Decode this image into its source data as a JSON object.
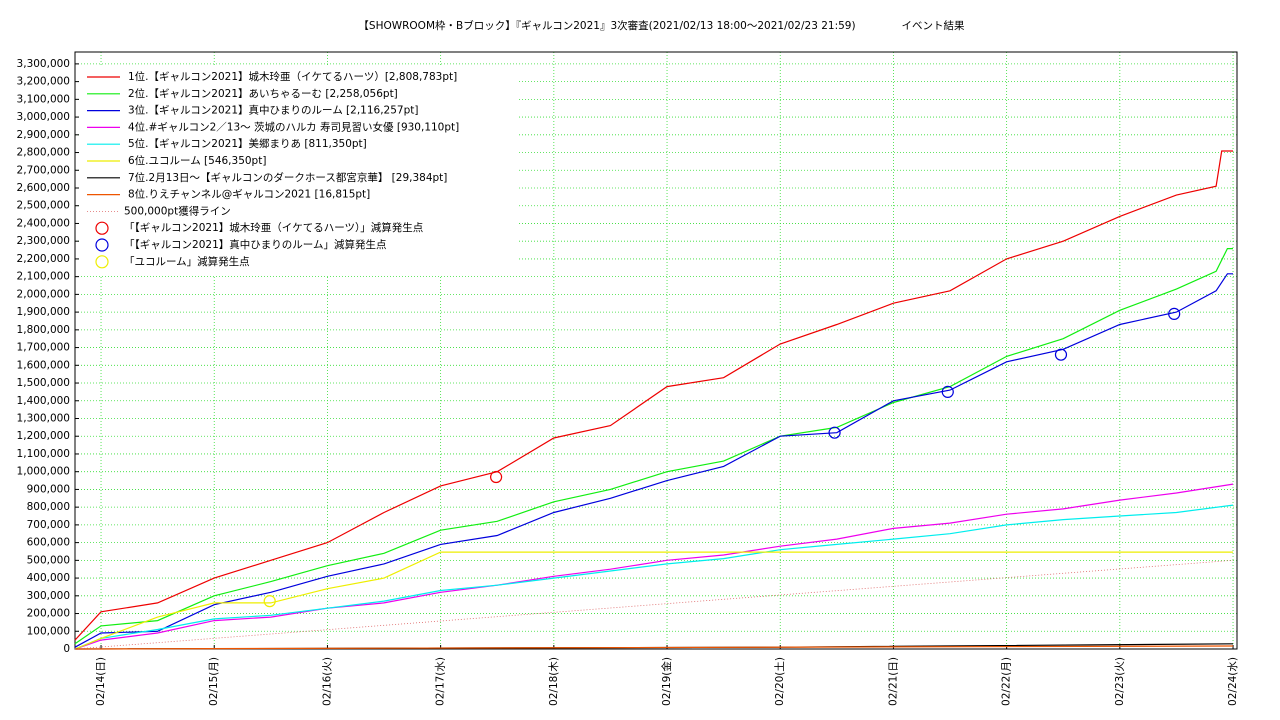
{
  "chart_data": {
    "type": "line",
    "title": "【SHOWROOM枠・Bブロック】『ギャルコン2021』3次審査(2021/02/13 18:00〜2021/02/23 21:59)",
    "subtitle": "イベント結果",
    "xlim": [
      13.77,
      24.035
    ],
    "xticks": [
      {
        "value": 14,
        "label": "02/14(日)"
      },
      {
        "value": 15,
        "label": "02/15(月)"
      },
      {
        "value": 16,
        "label": "02/16(火)"
      },
      {
        "value": 17,
        "label": "02/17(水)"
      },
      {
        "value": 18,
        "label": "02/18(木)"
      },
      {
        "value": 19,
        "label": "02/19(金)"
      },
      {
        "value": 20,
        "label": "02/20(土)"
      },
      {
        "value": 21,
        "label": "02/21(日)"
      },
      {
        "value": 22,
        "label": "02/22(月)"
      },
      {
        "value": 23,
        "label": "02/23(火)"
      },
      {
        "value": 24,
        "label": "02/24(水)"
      }
    ],
    "ylim": [
      0,
      3367000
    ],
    "yticks": [
      0,
      {
        "value": 100000,
        "label": "100,000"
      },
      {
        "value": 200000,
        "label": "200,000"
      },
      {
        "value": 300000,
        "label": "300,000"
      },
      {
        "value": 400000,
        "label": "400,000"
      },
      {
        "value": 500000,
        "label": "500,000"
      },
      {
        "value": 600000,
        "label": "600,000"
      },
      {
        "value": 700000,
        "label": "700,000"
      },
      {
        "value": 800000,
        "label": "800,000"
      },
      {
        "value": 900000,
        "label": "900,000"
      },
      {
        "value": 1000000,
        "label": "1,000,000"
      },
      {
        "value": 1100000,
        "label": "1,100,000"
      },
      {
        "value": 1200000,
        "label": "1,200,000"
      },
      {
        "value": 1300000,
        "label": "1,300,000"
      },
      {
        "value": 1400000,
        "label": "1,400,000"
      },
      {
        "value": 1500000,
        "label": "1,500,000"
      },
      {
        "value": 1600000,
        "label": "1,600,000"
      },
      {
        "value": 1700000,
        "label": "1,700,000"
      },
      {
        "value": 1800000,
        "label": "1,800,000"
      },
      {
        "value": 1900000,
        "label": "1,900,000"
      },
      {
        "value": 2000000,
        "label": "2,000,000"
      },
      {
        "value": 2100000,
        "label": "2,100,000"
      },
      {
        "value": 2200000,
        "label": "2,200,000"
      },
      {
        "value": 2300000,
        "label": "2,300,000"
      },
      {
        "value": 2400000,
        "label": "2,400,000"
      },
      {
        "value": 2500000,
        "label": "2,500,000"
      },
      {
        "value": 2600000,
        "label": "2,600,000"
      },
      {
        "value": 2700000,
        "label": "2,700,000"
      },
      {
        "value": 2800000,
        "label": "2,800,000"
      },
      {
        "value": 2900000,
        "label": "2,900,000"
      },
      {
        "value": 3000000,
        "label": "3,000,000"
      },
      {
        "value": 3100000,
        "label": "3,100,000"
      },
      {
        "value": 3200000,
        "label": "3,200,000"
      },
      {
        "value": 3300000,
        "label": "3,300,000"
      }
    ],
    "grid": true,
    "grid_color": "#33dd33",
    "legend": "upper left",
    "series": [
      {
        "name": "1位.【ギャルコン2021】城木玲亜（イケてるハーツ）[2,808,783pt]",
        "color": "#ee0000",
        "style": "line",
        "x": [
          13.77,
          14.0,
          14.5,
          15.0,
          15.5,
          16.0,
          16.5,
          17.0,
          17.5,
          18.0,
          18.5,
          19.0,
          19.5,
          20.0,
          20.5,
          21.0,
          21.5,
          22.0,
          22.5,
          23.0,
          23.5,
          23.85,
          23.9,
          24.0
        ],
        "values": [
          50000,
          210000,
          260000,
          400000,
          500000,
          600000,
          770000,
          920000,
          1000000,
          1190000,
          1260000,
          1480000,
          1530000,
          1720000,
          1830000,
          1950000,
          2020000,
          2200000,
          2300000,
          2440000,
          2560000,
          2610000,
          2808783,
          2808783
        ]
      },
      {
        "name": "2位.【ギャルコン2021】あいちゃるーむ [2,258,056pt]",
        "color": "#11ee11",
        "style": "line",
        "x": [
          13.77,
          14.0,
          14.5,
          15.0,
          15.5,
          16.0,
          16.5,
          17.0,
          17.5,
          18.0,
          18.5,
          19.0,
          19.5,
          20.0,
          20.5,
          21.0,
          21.5,
          22.0,
          22.5,
          23.0,
          23.5,
          23.85,
          23.95,
          24.0
        ],
        "values": [
          30000,
          130000,
          160000,
          300000,
          380000,
          470000,
          540000,
          670000,
          720000,
          830000,
          900000,
          1000000,
          1060000,
          1200000,
          1250000,
          1390000,
          1480000,
          1650000,
          1750000,
          1910000,
          2030000,
          2130000,
          2258056,
          2258056
        ]
      },
      {
        "name": "3位.【ギャルコン2021】真中ひまりのルーム [2,116,257pt]",
        "color": "#0000dd",
        "style": "line",
        "x": [
          13.77,
          14.0,
          14.5,
          15.0,
          15.5,
          16.0,
          16.5,
          17.0,
          17.5,
          18.0,
          18.5,
          19.0,
          19.5,
          20.0,
          20.5,
          21.0,
          21.5,
          22.0,
          22.5,
          23.0,
          23.5,
          23.85,
          23.95,
          24.0
        ],
        "values": [
          10000,
          90000,
          100000,
          250000,
          320000,
          410000,
          480000,
          590000,
          640000,
          770000,
          850000,
          950000,
          1030000,
          1200000,
          1220000,
          1400000,
          1460000,
          1620000,
          1690000,
          1830000,
          1900000,
          2020000,
          2116257,
          2116257
        ]
      },
      {
        "name": "4位.#ギャルコン2／13〜 茨城のハルカ 寿司見習い女優 [930,110pt]",
        "color": "#ee00ee",
        "style": "line",
        "x": [
          13.77,
          14.0,
          14.5,
          15.0,
          15.5,
          16.0,
          16.5,
          17.0,
          17.5,
          18.0,
          18.5,
          19.0,
          19.5,
          20.0,
          20.5,
          21.0,
          21.5,
          22.0,
          22.5,
          23.0,
          23.5,
          24.0
        ],
        "values": [
          0,
          50000,
          90000,
          160000,
          180000,
          230000,
          260000,
          320000,
          360000,
          410000,
          450000,
          500000,
          530000,
          580000,
          620000,
          680000,
          710000,
          760000,
          790000,
          840000,
          880000,
          930110
        ]
      },
      {
        "name": "5位.【ギャルコン2021】美郷まりあ [811,350pt]",
        "color": "#00eeee",
        "style": "line",
        "x": [
          13.77,
          14.0,
          14.5,
          15.0,
          15.5,
          16.0,
          16.5,
          17.0,
          17.5,
          18.0,
          18.5,
          19.0,
          19.5,
          20.0,
          20.5,
          21.0,
          21.5,
          22.0,
          22.5,
          23.0,
          23.5,
          24.0
        ],
        "values": [
          0,
          60000,
          110000,
          170000,
          190000,
          230000,
          270000,
          330000,
          360000,
          400000,
          440000,
          480000,
          510000,
          560000,
          590000,
          620000,
          650000,
          700000,
          730000,
          750000,
          770000,
          811350
        ]
      },
      {
        "name": "6位.ユコルーム [546,350pt]",
        "color": "#eeee00",
        "style": "line",
        "x": [
          13.77,
          14.0,
          14.5,
          15.0,
          15.5,
          16.0,
          16.5,
          17.0,
          24.0
        ],
        "values": [
          0,
          60000,
          180000,
          260000,
          260000,
          340000,
          400000,
          546350,
          546350
        ]
      },
      {
        "name": "7位.2月13日〜【ギャルコンのダークホース都宮京華】 [29,384pt]",
        "color": "#000000",
        "style": "line",
        "x": [
          13.77,
          20.0,
          24.0
        ],
        "values": [
          0,
          10000,
          29384
        ]
      },
      {
        "name": "8位.りえチャンネル@ギャルコン2021 [16,815pt]",
        "color": "#ee5500",
        "style": "line",
        "x": [
          13.77,
          24.0
        ],
        "values": [
          0,
          16815
        ]
      },
      {
        "name": "500,000pt獲得ライン",
        "color": "#dd6666",
        "style": "dotted",
        "x": [
          13.77,
          24.0
        ],
        "values": [
          0,
          500000
        ]
      },
      {
        "name": "「【ギャルコン2021】城木玲亜（イケてるハーツ）」減算発生点",
        "color": "#ee0000",
        "style": "circle",
        "x": [
          17.49
        ],
        "values": [
          970000
        ]
      },
      {
        "name": "「【ギャルコン2021】真中ひまりのルーム」減算発生点",
        "color": "#0000dd",
        "style": "circle",
        "x": [
          20.48,
          21.48,
          22.48,
          23.48
        ],
        "values": [
          1220000,
          1450000,
          1660000,
          1890000
        ]
      },
      {
        "name": "「ユコルーム」減算発生点",
        "color": "#eeee00",
        "style": "circle",
        "x": [
          15.49
        ],
        "values": [
          270000
        ]
      }
    ]
  }
}
